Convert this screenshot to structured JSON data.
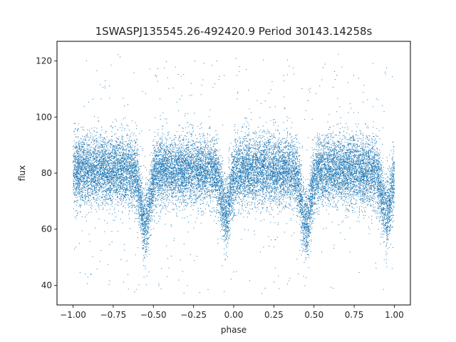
{
  "chart_data": {
    "type": "scatter",
    "title": "1SWASPJ135545.26-492420.9 Period 30143.14258s",
    "xlabel": "phase",
    "ylabel": "flux",
    "xlim": [
      -1.1,
      1.1
    ],
    "ylim": [
      33,
      127
    ],
    "xticks": [
      -1.0,
      -0.75,
      -0.5,
      -0.25,
      0.0,
      0.25,
      0.5,
      0.75,
      1.0
    ],
    "xtick_labels": [
      "−1.00",
      "−0.75",
      "−0.50",
      "−0.25",
      "0.00",
      "0.25",
      "0.50",
      "0.75",
      "1.00"
    ],
    "yticks": [
      40,
      60,
      80,
      100,
      120
    ],
    "ytick_labels": [
      "40",
      "60",
      "80",
      "100",
      "120"
    ],
    "grid": false,
    "point_color": "#1f77b4",
    "x_range_of_data": [
      -1.0,
      1.0
    ],
    "baseline_flux": 81,
    "typical_scatter": 6,
    "outlier_range": [
      37,
      123
    ],
    "eclipse_minima": [
      {
        "phase": -0.55,
        "flux": 62
      },
      {
        "phase": -0.05,
        "flux": 66
      },
      {
        "phase": 0.45,
        "flux": 62
      },
      {
        "phase": 0.95,
        "flux": 66
      }
    ]
  }
}
